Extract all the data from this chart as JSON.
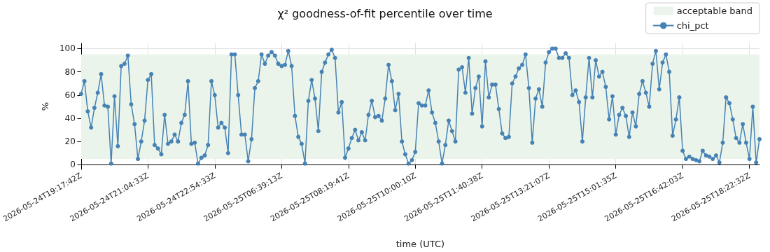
{
  "chart_data": {
    "type": "line",
    "title": "χ² goodness-of-fit percentile over time",
    "xlabel": "time (UTC)",
    "ylabel": "%",
    "categories": [
      "2026-05-24T19:17:42Z",
      null,
      null,
      null,
      null,
      null,
      null,
      null,
      null,
      null,
      null,
      null,
      null,
      null,
      null,
      null,
      null,
      null,
      null,
      null,
      "2026-05-24T21:04:33Z",
      null,
      null,
      null,
      null,
      null,
      null,
      null,
      null,
      null,
      null,
      null,
      null,
      null,
      null,
      null,
      null,
      null,
      null,
      null,
      "2026-05-24T22:54:33Z",
      null,
      null,
      null,
      null,
      null,
      null,
      null,
      null,
      null,
      null,
      null,
      null,
      null,
      null,
      null,
      null,
      null,
      null,
      null,
      "2026-05-25T06:39:13Z",
      null,
      null,
      null,
      null,
      null,
      null,
      null,
      null,
      null,
      null,
      null,
      null,
      null,
      null,
      null,
      null,
      null,
      null,
      null,
      "2026-05-25T08:19:41Z",
      null,
      null,
      null,
      null,
      null,
      null,
      null,
      null,
      null,
      null,
      null,
      null,
      null,
      null,
      null,
      null,
      null,
      null,
      null,
      "2026-05-25T10:00:10Z",
      null,
      null,
      null,
      null,
      null,
      null,
      null,
      null,
      null,
      null,
      null,
      null,
      null,
      null,
      null,
      null,
      null,
      null,
      null,
      "2026-05-25T11:40:38Z",
      null,
      null,
      null,
      null,
      null,
      null,
      null,
      null,
      null,
      null,
      null,
      null,
      null,
      null,
      null,
      null,
      null,
      null,
      null,
      "2026-05-25T13:21:07Z",
      null,
      null,
      null,
      null,
      null,
      null,
      null,
      null,
      null,
      null,
      null,
      null,
      null,
      null,
      null,
      null,
      null,
      null,
      null,
      "2026-05-25T15:01:35Z",
      null,
      null,
      null,
      null,
      null,
      null,
      null,
      null,
      null,
      null,
      null,
      null,
      null,
      null,
      null,
      null,
      null,
      null,
      null,
      "2026-05-25T16:42:03Z",
      null,
      null,
      null,
      null,
      null,
      null,
      null,
      null,
      null,
      null,
      null,
      null,
      null,
      null,
      null,
      null,
      null,
      null,
      null,
      "2026-05-25T18:22:32Z",
      null,
      null,
      null
    ],
    "series": [
      {
        "name": "chi_pct",
        "color": "#4682b4",
        "values": [
          61,
          72,
          46,
          32,
          49,
          62,
          78,
          51,
          50,
          1,
          59,
          16,
          85,
          87,
          94,
          52,
          35,
          5,
          20,
          38,
          73,
          78,
          17,
          14,
          9,
          43,
          18,
          20,
          26,
          20,
          36,
          43,
          72,
          18,
          19,
          1,
          6,
          8,
          17,
          72,
          60,
          32,
          36,
          32,
          10,
          95,
          95,
          60,
          26,
          26,
          3,
          22,
          66,
          72,
          95,
          87,
          94,
          97,
          94,
          87,
          85,
          86,
          98,
          85,
          42,
          24,
          18,
          1,
          55,
          73,
          57,
          29,
          80,
          88,
          95,
          99,
          92,
          45,
          54,
          6,
          14,
          23,
          30,
          21,
          28,
          21,
          43,
          55,
          41,
          42,
          38,
          57,
          86,
          72,
          47,
          61,
          20,
          9,
          1,
          4,
          11,
          53,
          51,
          51,
          64,
          45,
          36,
          20,
          1,
          17,
          38,
          29,
          20,
          82,
          84,
          62,
          92,
          44,
          66,
          76,
          33,
          89,
          58,
          69,
          69,
          48,
          27,
          23,
          24,
          70,
          76,
          83,
          86,
          95,
          66,
          19,
          57,
          65,
          50,
          88,
          97,
          100,
          100,
          92,
          92,
          96,
          92,
          60,
          64,
          54,
          20,
          58,
          92,
          58,
          90,
          76,
          80,
          67,
          39,
          59,
          26,
          43,
          49,
          42,
          24,
          45,
          33,
          61,
          72,
          62,
          50,
          87,
          98,
          65,
          88,
          95,
          80,
          25,
          39,
          58,
          12,
          5,
          7,
          5,
          4,
          3,
          12,
          8,
          7,
          5,
          8,
          2,
          19,
          58,
          53,
          39,
          23,
          19,
          35,
          19,
          5,
          50,
          2,
          22
        ]
      }
    ],
    "bands": [
      {
        "axis": "y",
        "from": 5,
        "to": 95,
        "label": "acceptable band",
        "color": "#eaf4ea"
      }
    ],
    "ylim": [
      -4,
      104.5
    ],
    "yticks": [
      0,
      20,
      40,
      60,
      80,
      100
    ],
    "grid": true,
    "legend": "top right",
    "marker": "circle",
    "line_style": "solid"
  }
}
